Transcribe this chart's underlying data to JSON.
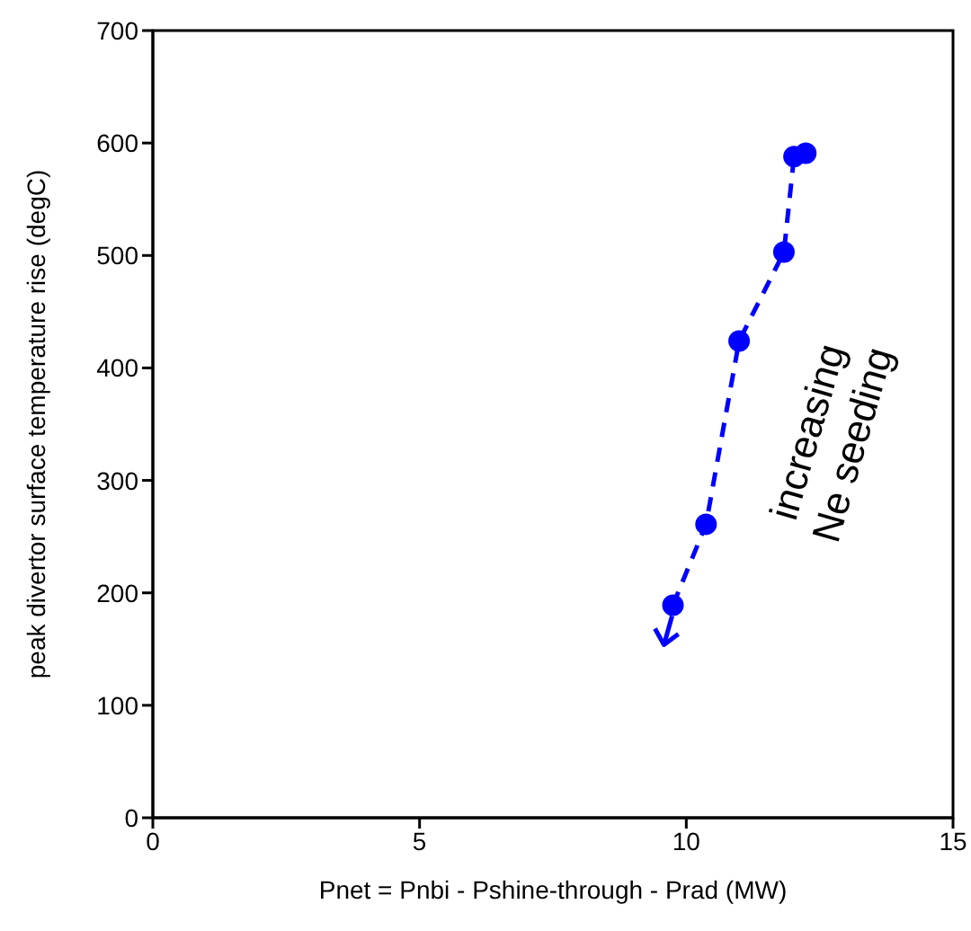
{
  "chart_data": {
    "type": "line",
    "xlabel": "Pnet = Pnbi - Pshine-through  - Prad (MW)",
    "ylabel": "peak divertor surface temperature rise (degC)",
    "x": [
      9.75,
      10.37,
      10.99,
      11.83,
      12.02,
      12.24
    ],
    "series": [
      {
        "color": "#0000ff",
        "values": [
          189,
          261,
          424,
          503,
          588,
          591
        ]
      }
    ],
    "xlim": [
      0,
      15
    ],
    "xticks": [
      0,
      5,
      10,
      15
    ],
    "ylim": [
      0,
      700
    ],
    "yticks": [
      0,
      100,
      200,
      300,
      400,
      500,
      600,
      700
    ],
    "marker": "circle",
    "line_style": "dashed",
    "annotations": [
      "increasing Ne seeding"
    ]
  }
}
